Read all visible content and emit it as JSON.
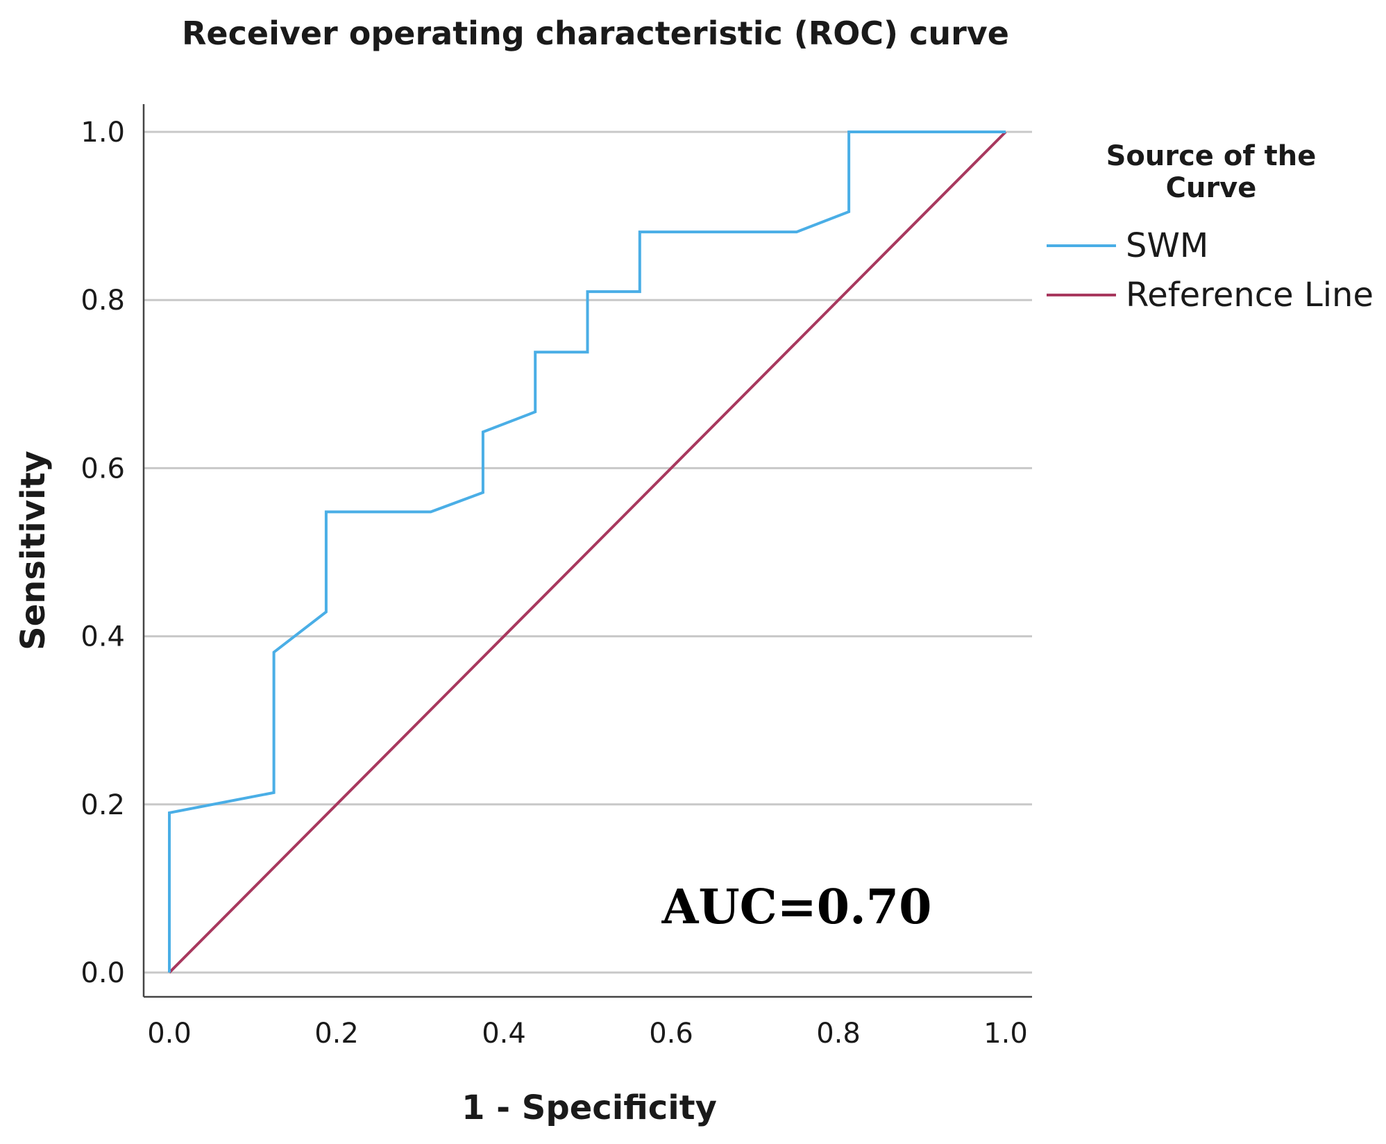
{
  "chart_data": {
    "type": "line",
    "title": "Receiver operating characteristic (ROC) curve",
    "xlabel": "1 - Specificity",
    "ylabel": "Sensitivity",
    "xlim": [
      0,
      1
    ],
    "ylim": [
      0,
      1
    ],
    "x_ticks": [
      "0.0",
      "0.2",
      "0.4",
      "0.6",
      "0.8",
      "1.0"
    ],
    "y_ticks": [
      "0.0",
      "0.2",
      "0.4",
      "0.6",
      "0.8",
      "1.0"
    ],
    "grid": "horizontal",
    "legend": {
      "title": "Source of the Curve",
      "placement": "right",
      "entries": [
        "SWM",
        "Reference Line"
      ]
    },
    "series": [
      {
        "name": "SWM",
        "color": "#4aaee6",
        "points": [
          [
            0.0,
            0.0
          ],
          [
            0.0,
            0.19
          ],
          [
            0.125,
            0.214
          ],
          [
            0.125,
            0.381
          ],
          [
            0.1875,
            0.429
          ],
          [
            0.1875,
            0.548
          ],
          [
            0.3125,
            0.548
          ],
          [
            0.375,
            0.571
          ],
          [
            0.375,
            0.643
          ],
          [
            0.4375,
            0.667
          ],
          [
            0.4375,
            0.738
          ],
          [
            0.5,
            0.738
          ],
          [
            0.5,
            0.81
          ],
          [
            0.5625,
            0.81
          ],
          [
            0.5625,
            0.881
          ],
          [
            0.75,
            0.881
          ],
          [
            0.8125,
            0.905
          ],
          [
            0.8125,
            1.0
          ],
          [
            1.0,
            1.0
          ]
        ]
      },
      {
        "name": "Reference Line",
        "color": "#a8385e",
        "points": [
          [
            0.0,
            0.0
          ],
          [
            1.0,
            1.0
          ]
        ]
      }
    ],
    "annotations": [
      "AUC=0.70"
    ]
  }
}
